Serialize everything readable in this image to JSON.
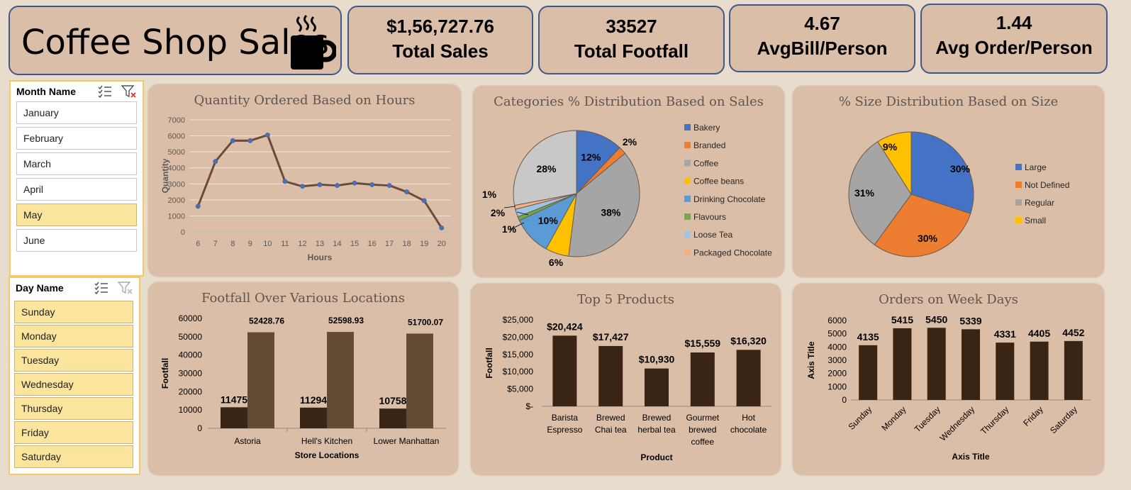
{
  "header": {
    "title": "Coffee Shop Sales",
    "icon": "coffee-cup-icon"
  },
  "kpis": [
    {
      "value": "$1,56,727.76",
      "label": "Total Sales"
    },
    {
      "value": "33527",
      "label": "Total Footfall"
    },
    {
      "value": "4.67",
      "label": "AvgBill/Person"
    },
    {
      "value": "1.44",
      "label": "Avg Order/Person"
    }
  ],
  "month_slicer": {
    "title": "Month Name",
    "items": [
      {
        "label": "January",
        "selected": false
      },
      {
        "label": "February",
        "selected": false
      },
      {
        "label": "March",
        "selected": false
      },
      {
        "label": "April",
        "selected": false
      },
      {
        "label": "May",
        "selected": true
      },
      {
        "label": "June",
        "selected": false
      }
    ]
  },
  "day_slicer": {
    "title": "Day Name",
    "items": [
      {
        "label": "Sunday",
        "selected": true
      },
      {
        "label": "Monday",
        "selected": true
      },
      {
        "label": "Tuesday",
        "selected": true
      },
      {
        "label": "Wednesday",
        "selected": true
      },
      {
        "label": "Thursday",
        "selected": true
      },
      {
        "label": "Friday",
        "selected": true
      },
      {
        "label": "Saturday",
        "selected": true
      }
    ]
  },
  "chart_data": [
    {
      "id": "hours",
      "type": "line",
      "title": "Quantity Ordered Based on Hours",
      "xlabel": "Hours",
      "ylabel": "Quantity",
      "x": [
        "6",
        "7",
        "8",
        "9",
        "10",
        "11",
        "12",
        "13",
        "14",
        "15",
        "16",
        "17",
        "18",
        "19",
        "20"
      ],
      "series": [
        {
          "values": [
            1600,
            4400,
            5700,
            5700,
            6050,
            3150,
            2850,
            2950,
            2900,
            3050,
            2950,
            2900,
            2500,
            1950,
            250
          ]
        }
      ],
      "ylim": [
        0,
        7000
      ],
      "yticks": [
        "0",
        "1000",
        "2000",
        "3000",
        "4000",
        "5000",
        "6000",
        "7000"
      ],
      "color": "#6b4a3a",
      "marker_color": "#4f6fb5",
      "grid": true
    },
    {
      "id": "categories",
      "type": "pie",
      "title": "Categories % Distribution Based on Sales",
      "labels": [
        "Bakery",
        "Branded",
        "Coffee",
        "Coffee beans",
        "Drinking Chocolate",
        "Flavours",
        "Loose Tea",
        "Packaged Chocolate"
      ],
      "values": [
        12,
        2,
        38,
        6,
        10,
        1,
        2,
        1
      ],
      "value_labels": [
        "12%",
        "2%",
        "38%",
        "6%",
        "10%",
        "1%",
        "2%",
        "1%"
      ],
      "extra_slice": {
        "value": 28,
        "label": "28%",
        "color": "#c8c8c8"
      },
      "colors": [
        "#4472c4",
        "#ed7d31",
        "#a5a5a5",
        "#ffc000",
        "#5b9bd5",
        "#70ad47",
        "#9dc3e6",
        "#f4b183"
      ],
      "legend": "right"
    },
    {
      "id": "sizes",
      "type": "pie",
      "title": "% Size Distribution Based on Size",
      "labels": [
        "Large",
        "Not Defined",
        "Regular",
        "Small"
      ],
      "values": [
        30,
        30,
        31,
        9
      ],
      "value_labels": [
        "30%",
        "30%",
        "31%",
        "9%"
      ],
      "colors": [
        "#4472c4",
        "#ed7d31",
        "#a5a5a5",
        "#ffc000"
      ],
      "legend": "right"
    },
    {
      "id": "footfall",
      "type": "bar",
      "title": "Footfall Over Various Locations",
      "xlabel": "Store Locations",
      "ylabel": "Footfall",
      "categories": [
        "Astoria",
        "Hell's Kitchen",
        "Lower Manhattan"
      ],
      "series": [
        {
          "values": [
            11475,
            11294,
            10758
          ],
          "labels": [
            "11475",
            "11294",
            "10758"
          ],
          "color": "#3a2414"
        },
        {
          "values": [
            52428.76,
            52598.93,
            51700.07
          ],
          "labels": [
            "52428.76",
            "52598.93",
            "51700.07"
          ],
          "color": "#634a33"
        }
      ],
      "ylim": [
        0,
        60000
      ],
      "yticks": [
        "0",
        "10000",
        "20000",
        "30000",
        "40000",
        "50000",
        "60000"
      ]
    },
    {
      "id": "products",
      "type": "bar",
      "title": "Top 5 Products",
      "xlabel": "Product",
      "ylabel": "Footfall",
      "categories": [
        [
          "Barista",
          "Espresso"
        ],
        [
          "Brewed",
          "Chai tea"
        ],
        [
          "Brewed",
          "herbal tea"
        ],
        [
          "Gourmet",
          "brewed",
          "coffee"
        ],
        [
          "Hot",
          "chocolate"
        ]
      ],
      "values": [
        20424,
        17427,
        10930,
        15559,
        16320
      ],
      "value_labels": [
        "$20,424",
        "$17,427",
        "$10,930",
        "$15,559",
        "$16,320"
      ],
      "ylim": [
        0,
        25000
      ],
      "yticks": [
        "$-",
        "$5,000",
        "$10,000",
        "$15,000",
        "$20,000",
        "$25,000"
      ],
      "color": "#3a2414"
    },
    {
      "id": "weekdays",
      "type": "bar",
      "title": "Orders on Week Days",
      "xlabel": "Axis Title",
      "ylabel": "Axis Title",
      "categories": [
        "Sunday",
        "Monday",
        "Tuesday",
        "Wednesday",
        "Thursday",
        "Friday",
        "Saturday"
      ],
      "values": [
        4135,
        5415,
        5450,
        5339,
        4331,
        4405,
        4452
      ],
      "value_labels": [
        "4135",
        "5415",
        "5450",
        "5339",
        "4331",
        "4405",
        "4452"
      ],
      "ylim": [
        0,
        6000
      ],
      "yticks": [
        "0",
        "1000",
        "2000",
        "3000",
        "4000",
        "5000",
        "6000"
      ],
      "color": "#3a2414"
    }
  ]
}
